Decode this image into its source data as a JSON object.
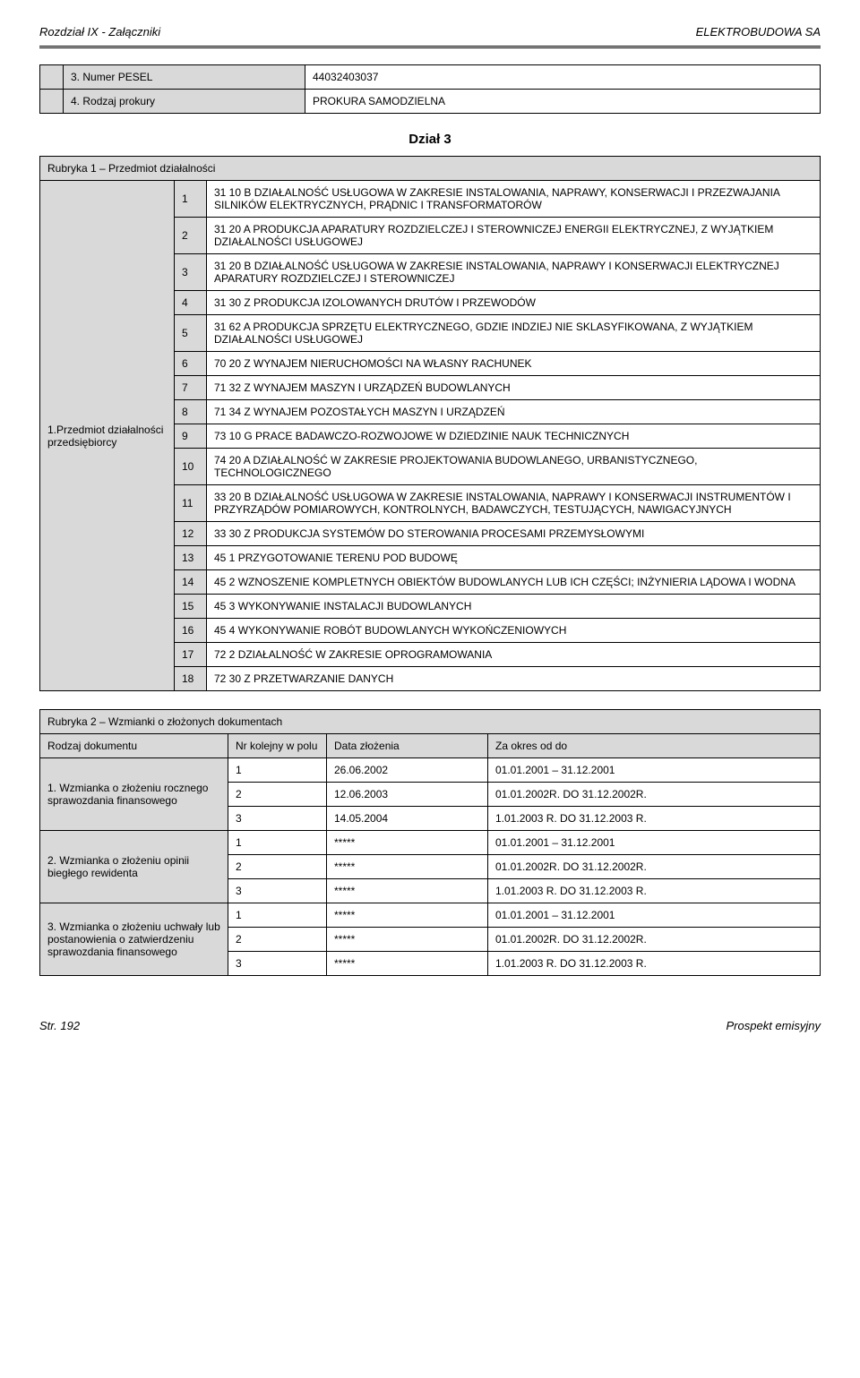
{
  "header": {
    "left": "Rozdział IX - Załączniki",
    "right": "ELEKTROBUDOWA SA"
  },
  "footer": {
    "left": "Str. 192",
    "right": "Prospekt emisyjny"
  },
  "top_table": {
    "rows": [
      {
        "n": "",
        "idx": "3.",
        "label": "Numer PESEL",
        "value": "44032403037"
      },
      {
        "n": "",
        "idx": "4.",
        "label": "Rodzaj prokury",
        "value": "PROKURA SAMODZIELNA"
      }
    ]
  },
  "dzial3_title": "Dział 3",
  "rubryka1": {
    "title": "Rubryka 1 – Przedmiot działalności",
    "side_label": "1.Przedmiot działalności przedsiębiorcy",
    "rows": [
      {
        "n": "1",
        "text": "31 10 B DZIAŁALNOŚĆ USŁUGOWA W ZAKRESIE INSTALOWANIA, NAPRAWY, KONSERWACJI I PRZEZWAJANIA SILNIKÓW ELEKTRYCZNYCH, PRĄDNIC I TRANSFORMATORÓW"
      },
      {
        "n": "2",
        "text": "31 20 A PRODUKCJA APARATURY ROZDZIELCZEJ I STEROWNICZEJ ENERGII ELEKTRYCZNEJ, Z WYJĄTKIEM DZIAŁALNOŚCI USŁUGOWEJ"
      },
      {
        "n": "3",
        "text": "31 20 B DZIAŁALNOŚĆ USŁUGOWA W ZAKRESIE INSTALOWANIA, NAPRAWY I KONSERWACJI ELEKTRYCZNEJ APARATURY ROZDZIELCZEJ I STEROWNICZEJ"
      },
      {
        "n": "4",
        "text": "31 30 Z PRODUKCJA IZOLOWANYCH DRUTÓW I PRZEWODÓW"
      },
      {
        "n": "5",
        "text": "31 62 A PRODUKCJA SPRZĘTU ELEKTRYCZNEGO, GDZIE INDZIEJ NIE SKLASYFIKOWANA, Z WYJĄTKIEM DZIAŁALNOŚCI USŁUGOWEJ"
      },
      {
        "n": "6",
        "text": "70 20 Z WYNAJEM NIERUCHOMOŚCI NA WŁASNY RACHUNEK"
      },
      {
        "n": "7",
        "text": "71 32 Z WYNAJEM MASZYN I URZĄDZEŃ BUDOWLANYCH"
      },
      {
        "n": "8",
        "text": "71 34 Z WYNAJEM POZOSTAŁYCH MASZYN I URZĄDZEŃ"
      },
      {
        "n": "9",
        "text": "73 10 G PRACE BADAWCZO-ROZWOJOWE W DZIEDZINIE NAUK TECHNICZNYCH"
      },
      {
        "n": "10",
        "text": "74 20 A DZIAŁALNOŚĆ W ZAKRESIE PROJEKTOWANIA BUDOWLANEGO, URBANISTYCZNEGO, TECHNOLOGICZNEGO"
      },
      {
        "n": "11",
        "text": "33 20 B DZIAŁALNOŚĆ USŁUGOWA W ZAKRESIE INSTALOWANIA, NAPRAWY I KONSERWACJI INSTRUMENTÓW I PRZYRZĄDÓW POMIAROWYCH, KONTROLNYCH, BADAWCZYCH, TESTUJĄCYCH, NAWIGACYJNYCH"
      },
      {
        "n": "12",
        "text": "33 30 Z PRODUKCJA SYSTEMÓW DO STEROWANIA PROCESAMI PRZEMYSŁOWYMI"
      },
      {
        "n": "13",
        "text": "45 1 PRZYGOTOWANIE TERENU POD BUDOWĘ"
      },
      {
        "n": "14",
        "text": "45 2 WZNOSZENIE KOMPLETNYCH OBIEKTÓW BUDOWLANYCH LUB ICH CZĘŚCI; INŻYNIERIA LĄDOWA I WODNA"
      },
      {
        "n": "15",
        "text": "45 3 WYKONYWANIE INSTALACJI BUDOWLANYCH"
      },
      {
        "n": "16",
        "text": "45 4 WYKONYWANIE ROBÓT BUDOWLANYCH WYKOŃCZENIOWYCH"
      },
      {
        "n": "17",
        "text": "72 2 DZIAŁALNOŚĆ W ZAKRESIE OPROGRAMOWANIA"
      },
      {
        "n": "18",
        "text": "72 30 Z PRZETWARZANIE DANYCH"
      }
    ]
  },
  "rubryka2": {
    "title": "Rubryka 2 – Wzmianki o złożonych dokumentach",
    "headers": {
      "col1": "Rodzaj dokumentu",
      "col2": "Nr kolejny w polu",
      "col3": "Data złożenia",
      "col4": "Za okres od do"
    },
    "groups": [
      {
        "label": "1. Wzmianka o złożeniu rocznego sprawozdania finansowego",
        "rows": [
          {
            "n": "1",
            "date": "26.06.2002",
            "period": "01.01.2001 – 31.12.2001"
          },
          {
            "n": "2",
            "date": "12.06.2003",
            "period": "01.01.2002R. DO 31.12.2002R."
          },
          {
            "n": "3",
            "date": "14.05.2004",
            "period": "1.01.2003 R. DO 31.12.2003 R."
          }
        ]
      },
      {
        "label": "2. Wzmianka o złożeniu opinii biegłego rewidenta",
        "rows": [
          {
            "n": "1",
            "date": "*****",
            "period": "01.01.2001 – 31.12.2001"
          },
          {
            "n": "2",
            "date": "*****",
            "period": "01.01.2002R. DO 31.12.2002R."
          },
          {
            "n": "3",
            "date": "*****",
            "period": "1.01.2003 R. DO 31.12.2003 R."
          }
        ]
      },
      {
        "label": "3. Wzmianka o złożeniu uchwały lub postanowienia o zatwierdzeniu sprawozdania finansowego",
        "rows": [
          {
            "n": "1",
            "date": "*****",
            "period": "01.01.2001 – 31.12.2001"
          },
          {
            "n": "2",
            "date": "*****",
            "period": "01.01.2002R. DO 31.12.2002R."
          },
          {
            "n": "3",
            "date": "*****",
            "period": "1.01.2003 R. DO 31.12.2003 R."
          }
        ]
      }
    ]
  }
}
